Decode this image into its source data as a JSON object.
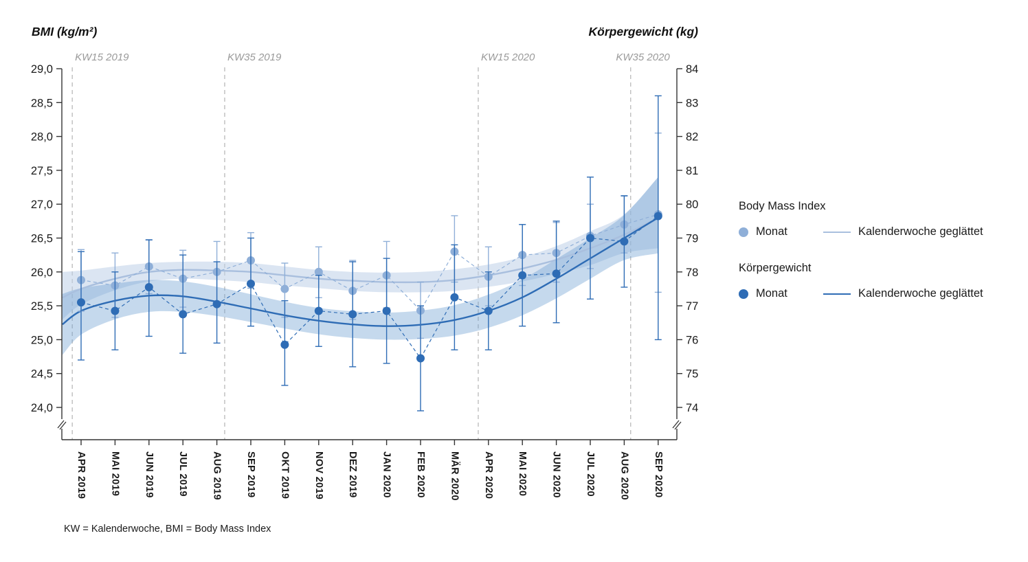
{
  "titles": {
    "left": "BMI (kg/m²)",
    "right": "Körpergewicht (kg)"
  },
  "footnote": "KW = Kalenderwoche, BMI = Body Mass Index",
  "legend": {
    "bmi_title": "Body Mass Index",
    "weight_title": "Körpergewicht",
    "monat_label": "Monat",
    "smoothed_label": "Kalenderwoche geglättet"
  },
  "colors": {
    "axis": "#333333",
    "kw_line": "#b3b3b3",
    "kw_text": "#9a9a9a",
    "bmi_accent": "#8fafd8",
    "weight_accent": "#2e6cb5"
  },
  "chart_data": {
    "type": "line",
    "categories": [
      "APR 2019",
      "MAI 2019",
      "JUN 2019",
      "JUL 2019",
      "AUG 2019",
      "SEP 2019",
      "OKT 2019",
      "NOV 2019",
      "DEZ 2019",
      "JAN 2020",
      "FEB 2020",
      "MÄR 2020",
      "APR 2020",
      "MAI 2020",
      "JUN 2020",
      "JUL 2020",
      "AUG 2020",
      "SEP 2020"
    ],
    "left_axis": {
      "label": "BMI (kg/m²)",
      "min": 24,
      "max": 29,
      "ticks": [
        29,
        28.5,
        28,
        27.5,
        27,
        26.5,
        26,
        25.5,
        25,
        24.5,
        24
      ],
      "tick_labels": [
        "29,0",
        "28,5",
        "28,0",
        "27,5",
        "27,0",
        "26,5",
        "26,0",
        "25,5",
        "25,0",
        "24,5",
        "24,0"
      ]
    },
    "right_axis": {
      "label": "Körpergewicht (kg)",
      "min": 74,
      "max": 84,
      "ticks": [
        84,
        83,
        82,
        81,
        80,
        79,
        78,
        77,
        76,
        75,
        74
      ],
      "tick_labels": [
        "84",
        "83",
        "82",
        "81",
        "80",
        "79",
        "78",
        "77",
        "76",
        "75",
        "74"
      ]
    },
    "kw_markers": [
      {
        "label": "KW15 2019",
        "month_index": -0.26
      },
      {
        "label": "KW35 2019",
        "month_index": 4.23
      },
      {
        "label": "KW15 2020",
        "month_index": 11.7
      },
      {
        "label": "KW35 2020",
        "month_index": 16.19,
        "label_align": "end"
      }
    ],
    "series": [
      {
        "name": "Body Mass Index — Monat",
        "axis": "left",
        "type": "points",
        "color": "#8fafd8",
        "values": [
          25.88,
          25.8,
          26.08,
          25.9,
          26.0,
          26.17,
          25.75,
          26.0,
          25.72,
          25.95,
          25.43,
          26.3,
          25.93,
          26.25,
          26.28,
          26.53,
          26.7,
          26.85
        ],
        "err_low": [
          25.42,
          25.33,
          25.68,
          25.48,
          25.55,
          25.76,
          25.33,
          25.62,
          25.3,
          25.47,
          25.02,
          25.85,
          25.5,
          25.8,
          25.85,
          26.05,
          26.28,
          25.7
        ],
        "err_high": [
          26.33,
          26.28,
          26.47,
          26.32,
          26.45,
          26.58,
          26.13,
          26.37,
          26.17,
          26.45,
          25.85,
          26.83,
          26.37,
          26.7,
          26.73,
          27.0,
          27.12,
          28.05
        ]
      },
      {
        "name": "Body Mass Index — Kalenderwoche geglättet",
        "axis": "left",
        "type": "smooth",
        "color": "#a9bfde",
        "band_color": "#bdcfe7",
        "band_opacity": 0.55,
        "x": [
          -0.55,
          0,
          1,
          2,
          3,
          4,
          5,
          6,
          7,
          8,
          9,
          10,
          11,
          12,
          13,
          14,
          15,
          16,
          17
        ],
        "values": [
          25.62,
          25.75,
          25.9,
          26.0,
          26.03,
          26.02,
          26.0,
          25.95,
          25.9,
          25.87,
          25.85,
          25.85,
          25.88,
          25.95,
          26.05,
          26.18,
          26.35,
          26.55,
          26.8
        ],
        "band_low": [
          25.3,
          25.52,
          25.73,
          25.86,
          25.9,
          25.88,
          25.85,
          25.8,
          25.76,
          25.72,
          25.7,
          25.7,
          25.72,
          25.78,
          25.86,
          25.97,
          26.1,
          26.28,
          26.35
        ],
        "band_high": [
          26.0,
          26.02,
          26.08,
          26.13,
          26.15,
          26.15,
          26.13,
          26.08,
          26.03,
          26.0,
          25.99,
          26.0,
          26.04,
          26.11,
          26.22,
          26.38,
          26.6,
          26.85,
          27.4
        ]
      },
      {
        "name": "Körpergewicht — Monat",
        "axis": "right",
        "type": "points",
        "color": "#2e6cb5",
        "values": [
          77.1,
          76.85,
          77.55,
          76.75,
          77.05,
          77.65,
          75.85,
          76.85,
          76.75,
          76.85,
          75.45,
          77.25,
          76.85,
          77.9,
          77.95,
          79.0,
          78.9,
          79.65
        ],
        "err_low": [
          75.4,
          75.7,
          76.1,
          75.6,
          75.9,
          76.4,
          74.65,
          75.8,
          75.2,
          75.3,
          73.9,
          75.7,
          75.7,
          76.4,
          76.5,
          77.2,
          77.55,
          76.0
        ],
        "err_high": [
          78.6,
          78.0,
          78.95,
          78.5,
          78.3,
          79.0,
          77.15,
          77.9,
          78.3,
          78.4,
          77.0,
          78.8,
          78.0,
          79.4,
          79.5,
          80.8,
          80.25,
          83.2
        ]
      },
      {
        "name": "Körpergewicht — Kalenderwoche geglättet",
        "axis": "right",
        "type": "smooth",
        "color": "#2e6cb5",
        "band_color": "#6f9fd1",
        "band_opacity": 0.4,
        "x": [
          -0.55,
          0,
          1,
          2,
          3,
          4,
          5,
          6,
          7,
          8,
          9,
          10,
          11,
          12,
          13,
          14,
          15,
          16,
          17
        ],
        "values": [
          76.45,
          76.85,
          77.15,
          77.3,
          77.28,
          77.12,
          76.92,
          76.72,
          76.56,
          76.45,
          76.4,
          76.44,
          76.58,
          76.85,
          77.25,
          77.8,
          78.4,
          79.0,
          79.6
        ],
        "band_low": [
          75.55,
          76.15,
          76.6,
          76.82,
          76.82,
          76.7,
          76.52,
          76.33,
          76.16,
          76.05,
          76.0,
          76.02,
          76.12,
          76.35,
          76.72,
          77.22,
          77.8,
          78.35,
          78.55
        ],
        "band_high": [
          77.35,
          77.52,
          77.66,
          77.76,
          77.72,
          77.56,
          77.34,
          77.12,
          76.94,
          76.84,
          76.8,
          76.86,
          77.02,
          77.33,
          77.78,
          78.38,
          79.0,
          79.68,
          80.8
        ]
      }
    ]
  }
}
